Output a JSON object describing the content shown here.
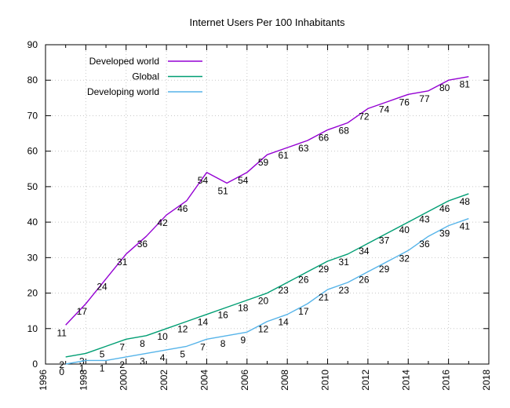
{
  "chart_data": {
    "type": "line",
    "title": "Internet Users Per 100 Inhabitants",
    "x": [
      1997,
      1998,
      1999,
      2000,
      2001,
      2002,
      2003,
      2004,
      2005,
      2006,
      2007,
      2008,
      2009,
      2010,
      2011,
      2012,
      2013,
      2014,
      2015,
      2016,
      2017
    ],
    "series": [
      {
        "name": "Developed world",
        "color": "#9400d3",
        "values": [
          11,
          17,
          24,
          31,
          36,
          42,
          46,
          54,
          51,
          54,
          59,
          61,
          63,
          66,
          68,
          72,
          74,
          76,
          77,
          80,
          81
        ]
      },
      {
        "name": "Global",
        "color": "#009e73",
        "values": [
          2,
          3,
          5,
          7,
          8,
          10,
          12,
          14,
          16,
          18,
          20,
          23,
          26,
          29,
          31,
          34,
          37,
          40,
          43,
          46,
          48
        ]
      },
      {
        "name": "Developing world",
        "color": "#56b4e9",
        "values": [
          0,
          1,
          1,
          2,
          3,
          4,
          5,
          7,
          8,
          9,
          12,
          14,
          17,
          21,
          23,
          26,
          29,
          32,
          36,
          39,
          41
        ]
      }
    ],
    "xlim": [
      1996,
      2018
    ],
    "ylim": [
      0,
      90
    ],
    "x_major_ticks": [
      1996,
      1998,
      2000,
      2002,
      2004,
      2006,
      2008,
      2010,
      2012,
      2014,
      2016,
      2018
    ],
    "y_ticks": [
      0,
      10,
      20,
      30,
      40,
      50,
      60,
      70,
      80,
      90
    ],
    "grid": true,
    "point_labels": true,
    "legend_position": "top-left",
    "style": {
      "background": "#ffffff",
      "axis_color": "#000000",
      "grid_color": "#c8c8c8",
      "text_color": "#000000"
    }
  }
}
